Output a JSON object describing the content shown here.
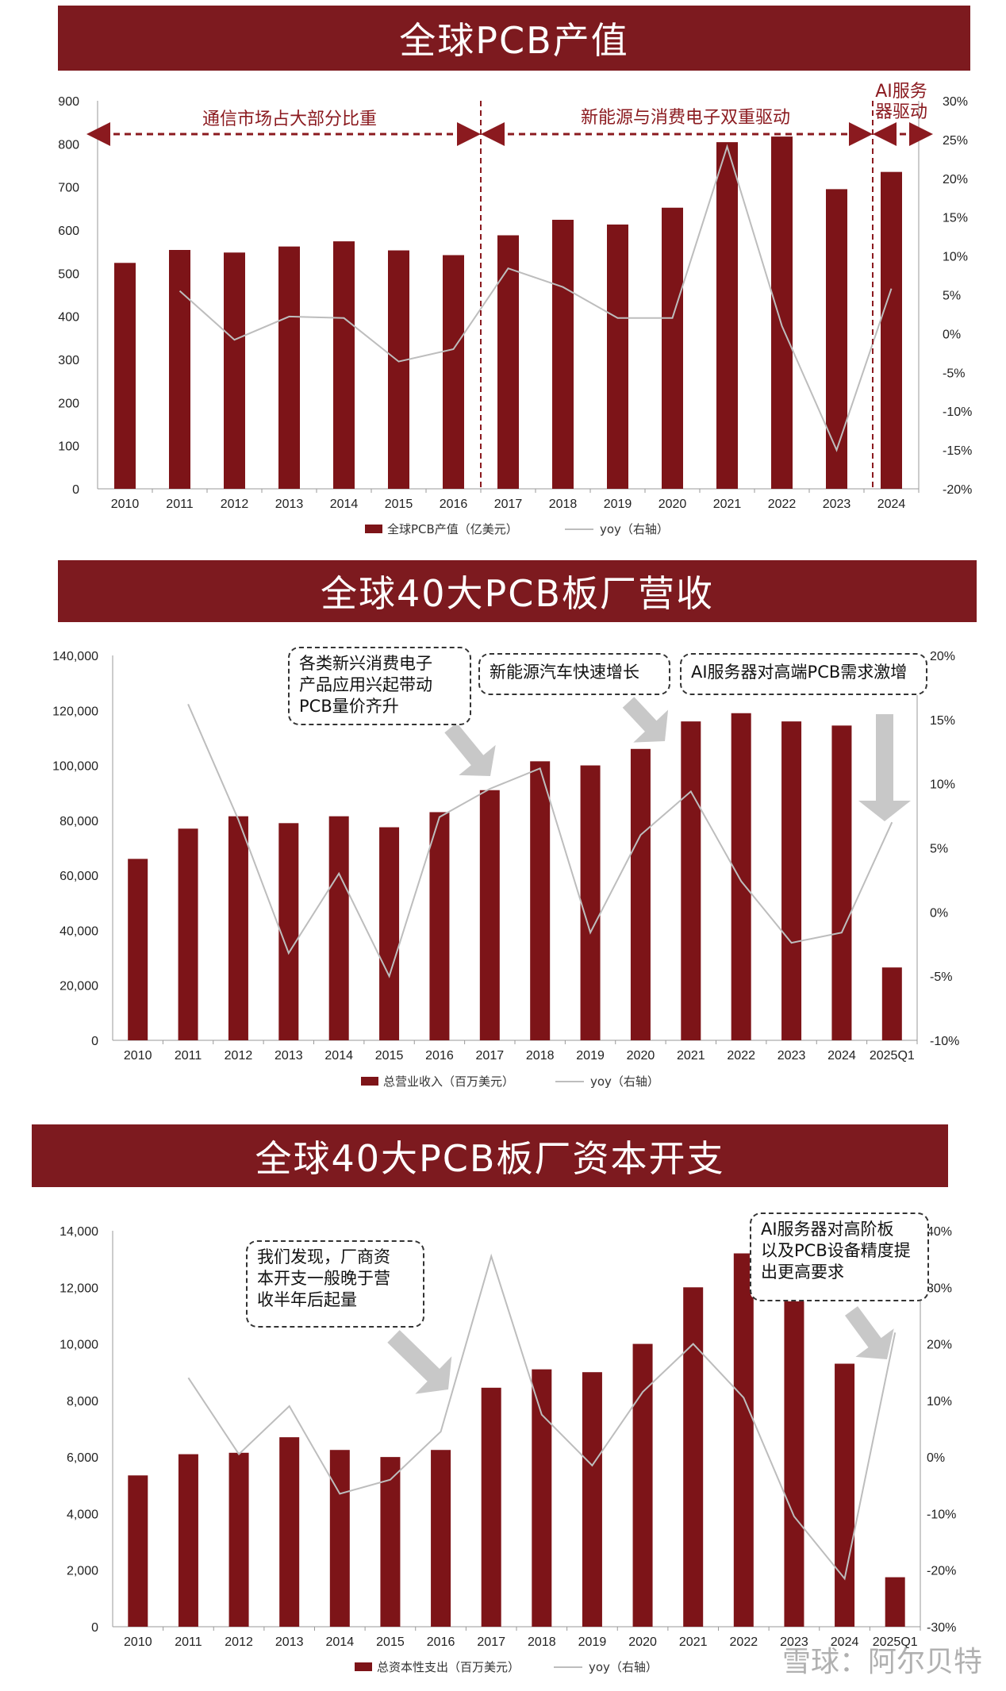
{
  "watermark": "雪球：阿尔贝特",
  "colors": {
    "bar": "#7d1418",
    "line": "#bdbdbd",
    "banner": "#7d1a1f",
    "annotation": "#8b1a1f"
  },
  "panels": [
    {
      "banner": "全球PCB产值",
      "legend": {
        "bar": "全球PCB产值（亿美元）",
        "line": "yoy（右轴）"
      },
      "annotations": [
        {
          "text": "通信市场占大部分比重"
        },
        {
          "text": "新能源与消费电子双重驱动"
        },
        {
          "text": "AI服务\n器驱动"
        }
      ],
      "callouts": []
    },
    {
      "banner": "全球40大PCB板厂营收",
      "legend": {
        "bar": "总营业收入（百万美元）",
        "line": "yoy（右轴）"
      },
      "annotations": [],
      "callouts": [
        {
          "text": "各类新兴消费电子\n产品应用兴起带动\nPCB量价齐升"
        },
        {
          "text": "新能源汽车快速增长"
        },
        {
          "text": "AI服务器对高端PCB需求激增"
        }
      ]
    },
    {
      "banner": "全球40大PCB板厂资本开支",
      "legend": {
        "bar": "总资本性支出（百万美元）",
        "line": "yoy（右轴）"
      },
      "annotations": [],
      "callouts": [
        {
          "text": "我们发现，厂商资\n本开支一般晚于营\n收半年后起量"
        },
        {
          "text": "AI服务器对高阶板\n以及PCB设备精度提\n出更高要求"
        }
      ]
    }
  ],
  "chart_data": [
    {
      "type": "bar",
      "title": "全球PCB产值",
      "categories": [
        "2010",
        "2011",
        "2012",
        "2013",
        "2014",
        "2015",
        "2016",
        "2017",
        "2018",
        "2019",
        "2020",
        "2021",
        "2022",
        "2023",
        "2024"
      ],
      "series": [
        {
          "name": "全球PCB产值（亿美元）",
          "type": "bar",
          "axis": "left",
          "values": [
            524,
            554,
            548,
            562,
            574,
            553,
            542,
            588,
            624,
            613,
            652,
            804,
            817,
            695,
            735
          ]
        },
        {
          "name": "yoy（右轴）",
          "type": "line",
          "axis": "right",
          "values": [
            null,
            5.5,
            -0.8,
            2.2,
            2.0,
            -3.6,
            -2.0,
            8.4,
            6.0,
            2.0,
            2.0,
            24.1,
            1.0,
            -15.0,
            5.8
          ]
        }
      ],
      "ylim_left": [
        0,
        900
      ],
      "yticks_left": [
        0,
        100,
        200,
        300,
        400,
        500,
        600,
        700,
        800,
        900
      ],
      "ylim_right": [
        -20,
        30
      ],
      "yticks_right": [
        "-20%",
        "-15%",
        "-10%",
        "-5%",
        "0%",
        "5%",
        "10%",
        "15%",
        "20%",
        "25%",
        "30%"
      ],
      "grid": false,
      "legend": "bottom"
    },
    {
      "type": "bar",
      "title": "全球40大PCB板厂营收",
      "categories": [
        "2010",
        "2011",
        "2012",
        "2013",
        "2014",
        "2015",
        "2016",
        "2017",
        "2018",
        "2019",
        "2020",
        "2021",
        "2022",
        "2023",
        "2024",
        "2025Q1"
      ],
      "series": [
        {
          "name": "总营业收入（百万美元）",
          "type": "bar",
          "axis": "left",
          "values": [
            66000,
            77000,
            81500,
            79000,
            81500,
            77500,
            83000,
            91000,
            101500,
            100000,
            106000,
            116000,
            119000,
            116000,
            114500,
            26500
          ]
        },
        {
          "name": "yoy（右轴）",
          "type": "line",
          "axis": "right",
          "values": [
            null,
            16.2,
            7.2,
            -3.2,
            3.0,
            -5.0,
            7.4,
            9.6,
            11.2,
            -1.6,
            6.0,
            9.4,
            2.4,
            -2.4,
            -1.6,
            7.0
          ]
        }
      ],
      "ylim_left": [
        0,
        140000
      ],
      "yticks_left": [
        "0",
        "20,000",
        "40,000",
        "60,000",
        "80,000",
        "100,000",
        "120,000",
        "140,000"
      ],
      "ylim_right": [
        -10,
        20
      ],
      "yticks_right": [
        "-10%",
        "-5%",
        "0%",
        "5%",
        "10%",
        "15%",
        "20%"
      ],
      "grid": false,
      "legend": "bottom"
    },
    {
      "type": "bar",
      "title": "全球40大PCB板厂资本开支",
      "categories": [
        "2010",
        "2011",
        "2012",
        "2013",
        "2014",
        "2015",
        "2016",
        "2017",
        "2018",
        "2019",
        "2020",
        "2021",
        "2022",
        "2023",
        "2024",
        "2025Q1"
      ],
      "series": [
        {
          "name": "总资本性支出（百万美元）",
          "type": "bar",
          "axis": "left",
          "values": [
            5350,
            6100,
            6150,
            6700,
            6250,
            6000,
            6250,
            8450,
            9100,
            9000,
            10000,
            12000,
            13200,
            11900,
            9300,
            1750
          ]
        },
        {
          "name": "yoy（右轴）",
          "type": "line",
          "axis": "right",
          "values": [
            null,
            14.0,
            0.5,
            9.0,
            -6.5,
            -4.0,
            4.5,
            35.5,
            7.5,
            -1.5,
            11.5,
            20.0,
            10.5,
            -10.5,
            -21.5,
            22.0
          ]
        }
      ],
      "ylim_left": [
        0,
        14000
      ],
      "yticks_left": [
        "0",
        "2,000",
        "4,000",
        "6,000",
        "8,000",
        "10,000",
        "12,000",
        "14,000"
      ],
      "ylim_right": [
        -30,
        40
      ],
      "yticks_right": [
        "-30%",
        "-20%",
        "-10%",
        "0%",
        "10%",
        "20%",
        "30%",
        "40%"
      ],
      "grid": false,
      "legend": "bottom"
    }
  ]
}
